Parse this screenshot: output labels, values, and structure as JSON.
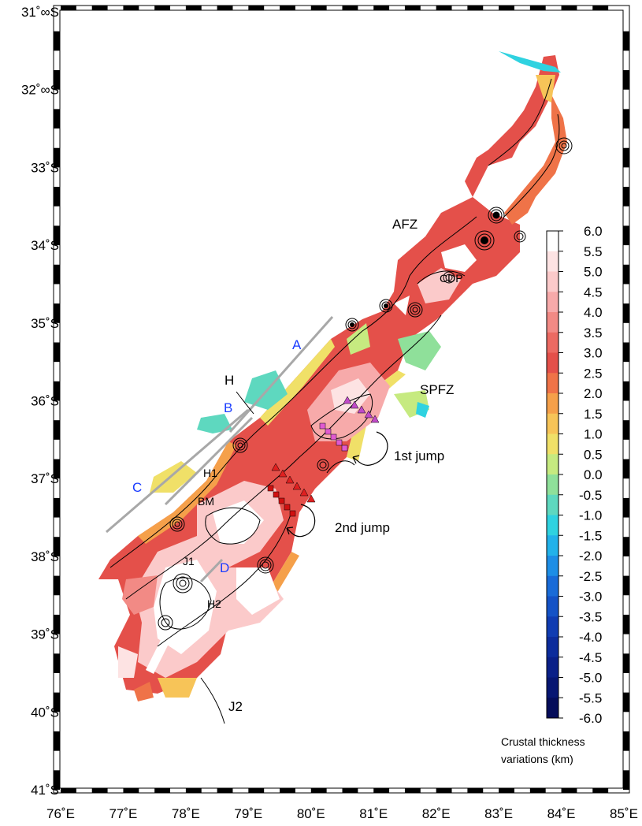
{
  "map": {
    "lon_ticks": [
      "76˚E",
      "77˚E",
      "78˚E",
      "79˚E",
      "80˚E",
      "81˚E",
      "82˚E",
      "83˚E",
      "84˚E",
      "85˚E"
    ],
    "lat_ticks": [
      "31˚∞S",
      "32˚∞S",
      "33˚S",
      "34˚S",
      "35˚S",
      "36˚S",
      "37˚S",
      "38˚S",
      "39˚S",
      "40˚S",
      "41˚S"
    ],
    "lon_range": [
      76,
      85
    ],
    "lat_range": [
      -41,
      -31
    ]
  },
  "annotations": {
    "afz": "AFZ",
    "cdp": "CDP",
    "spfz": "SPFZ",
    "h": "H",
    "h1": "H1",
    "h2": "H2",
    "bm": "BM",
    "j1": "J1",
    "j2": "J2",
    "a": "A",
    "b": "B",
    "c": "C",
    "d": "D",
    "first_jump": "1st jump",
    "second_jump": "2nd jump"
  },
  "colorbar": {
    "title_line1": "Crustal thickness",
    "title_line2": "variations (km)",
    "labels": [
      "6.0",
      "5.5",
      "5.0",
      "4.5",
      "4.0",
      "3.5",
      "3.0",
      "2.5",
      "2.0",
      "1.5",
      "1.0",
      "0.5",
      "0.0",
      "-0.5",
      "-1.0",
      "-1.5",
      "-2.0",
      "-2.5",
      "-3.0",
      "-3.5",
      "-4.0",
      "-4.5",
      "-5.0",
      "-5.5",
      "-6.0"
    ],
    "colors": [
      "#ffffff",
      "#fde3e3",
      "#fbcaca",
      "#f7aaaa",
      "#f28a85",
      "#ec6a62",
      "#e4504a",
      "#ef7348",
      "#f5a04a",
      "#f7c458",
      "#f0e068",
      "#c6ea80",
      "#8fe09a",
      "#5ed8bf",
      "#2fd2e0",
      "#22b2ea",
      "#1d8ee6",
      "#196bd8",
      "#1452c6",
      "#103cb2",
      "#0c2c9c",
      "#0a2088",
      "#071672",
      "#050d5a"
    ]
  }
}
